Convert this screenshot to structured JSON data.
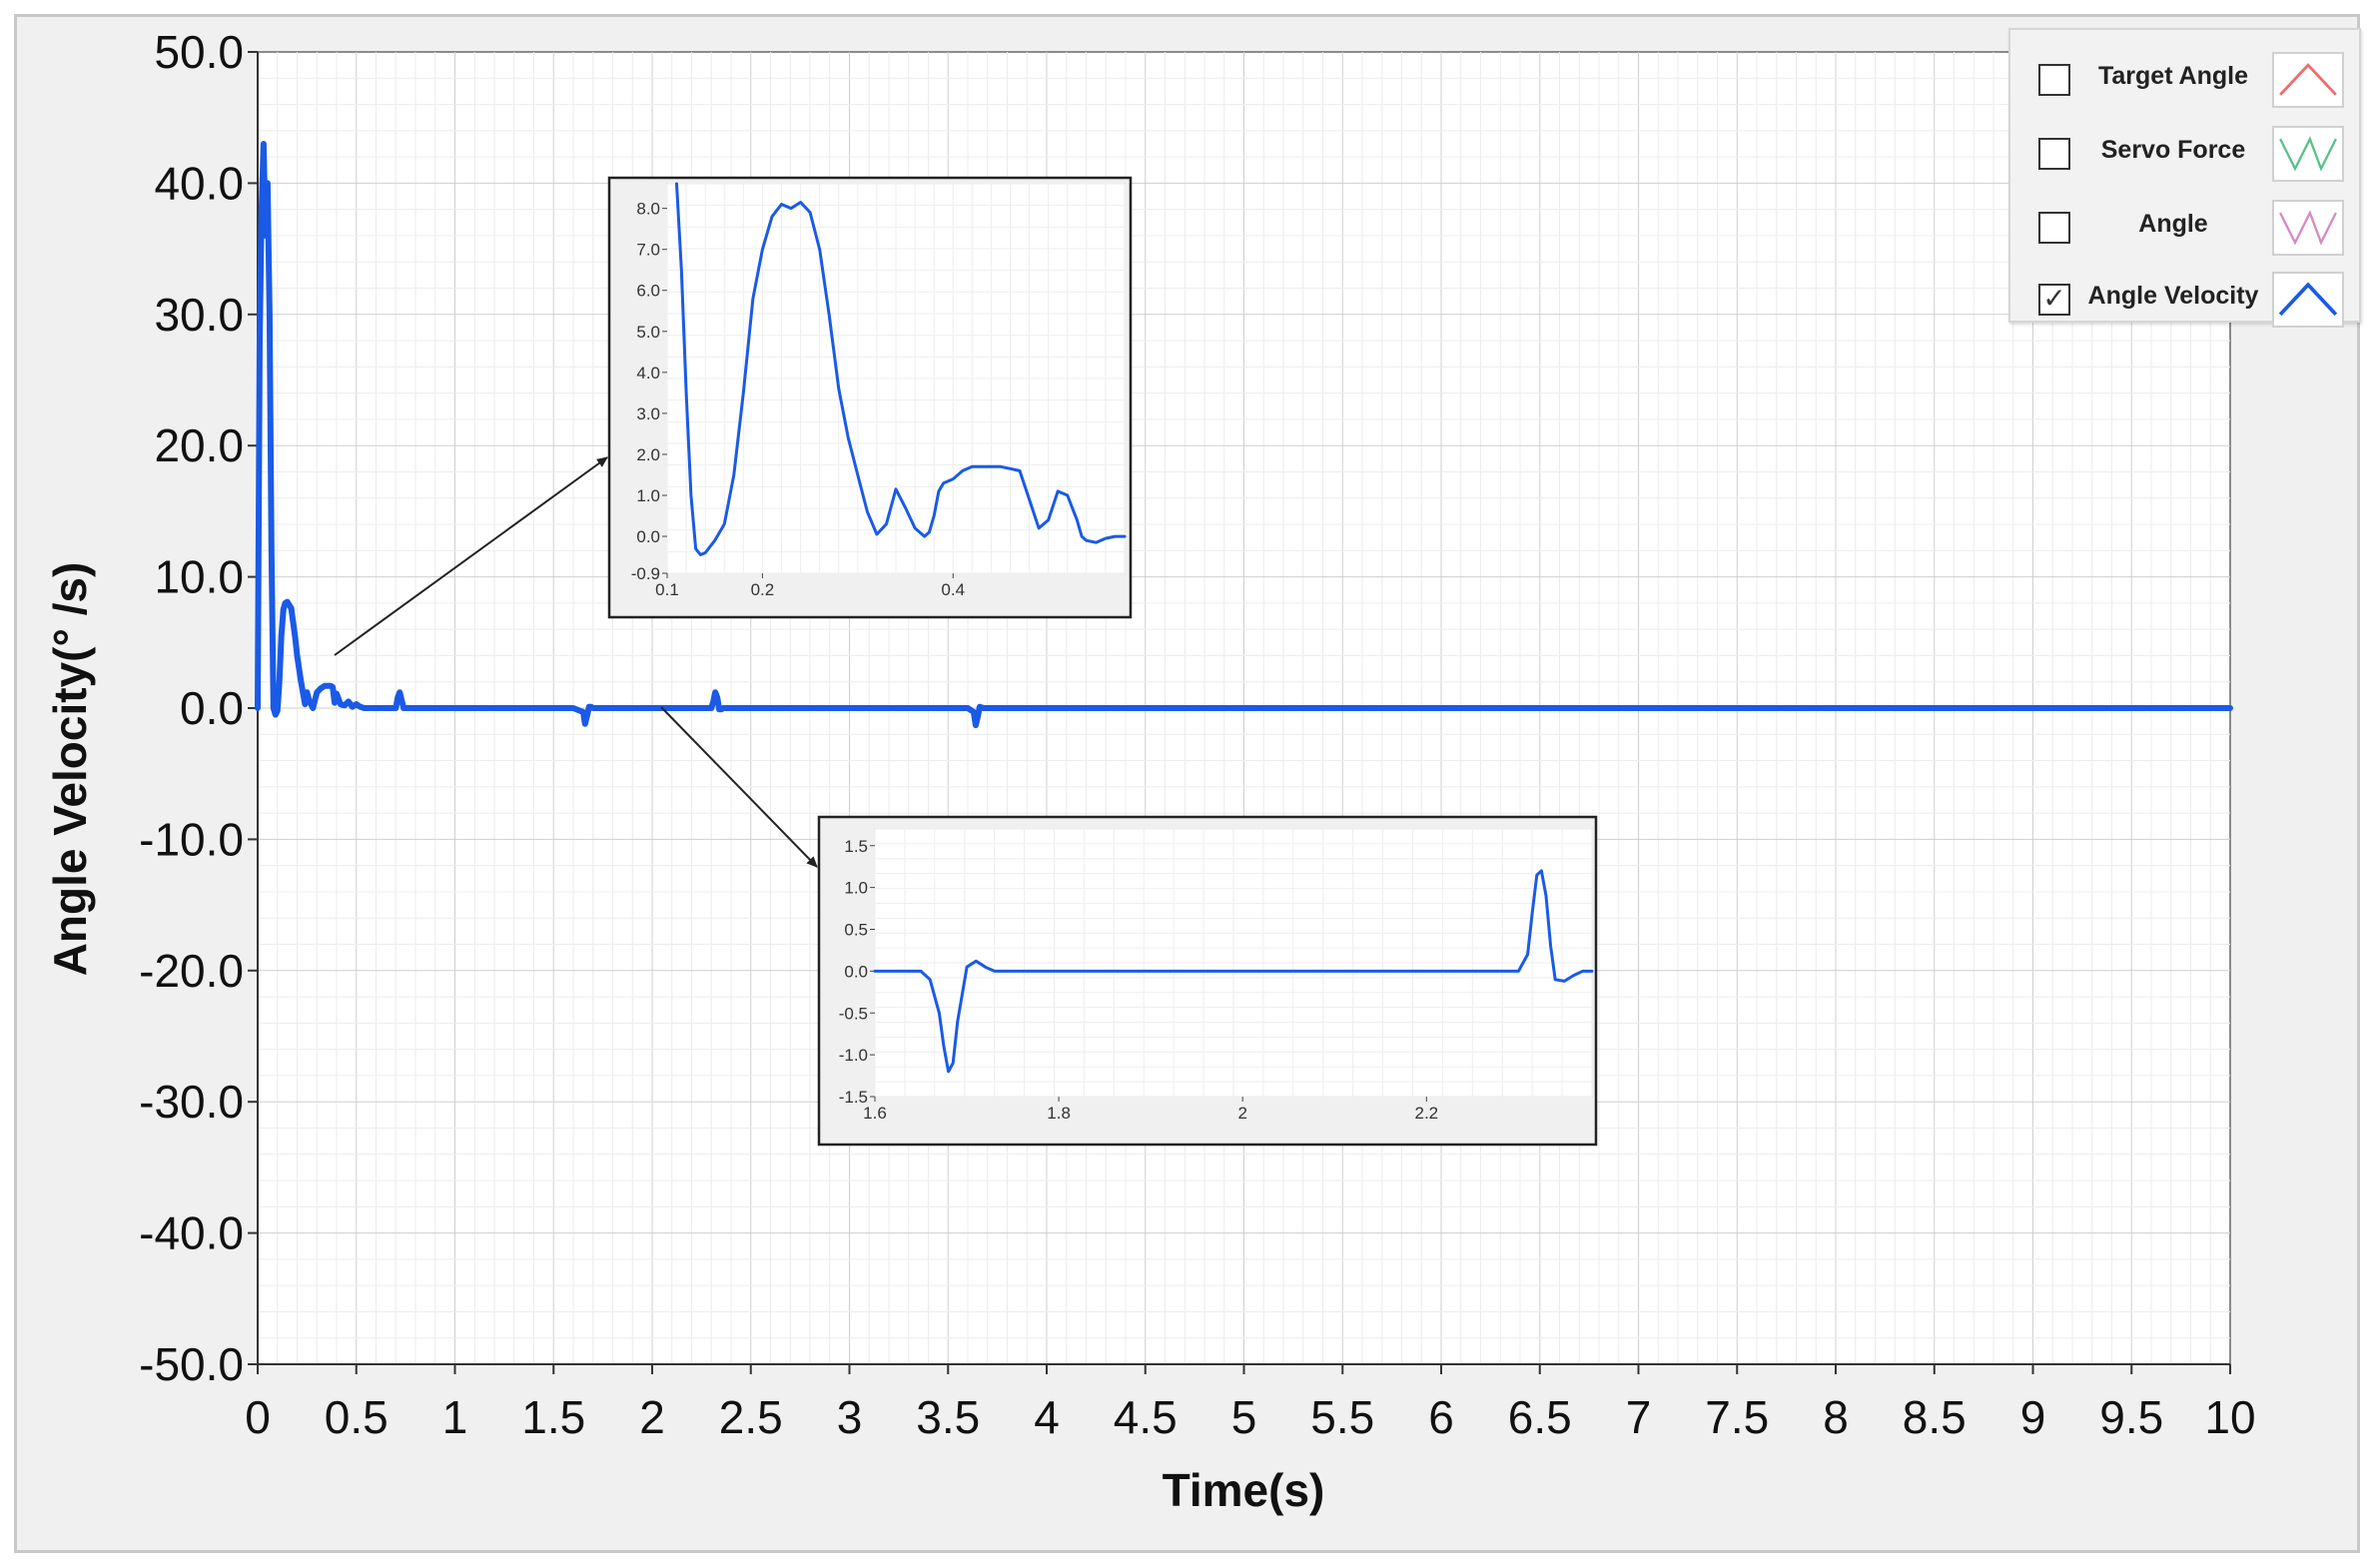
{
  "chart_data": {
    "type": "line",
    "xlabel": "Time(s)",
    "ylabel": "Angle Velocity(°  /s)",
    "xlim": [
      0,
      10
    ],
    "ylim": [
      -50,
      50
    ],
    "x_ticks": [
      "0",
      "0.5",
      "1",
      "1.5",
      "2",
      "2.5",
      "3",
      "3.5",
      "4",
      "4.5",
      "5",
      "5.5",
      "6",
      "6.5",
      "7",
      "7.5",
      "8",
      "8.5",
      "9",
      "9.5",
      "10"
    ],
    "y_ticks": [
      "50.0",
      "40.0",
      "30.0",
      "20.0",
      "10.0",
      "0.0",
      "-10.0",
      "-20.0",
      "-30.0",
      "-40.0",
      "-50.0"
    ],
    "grid": true,
    "legend_position": "top-right",
    "series": [
      {
        "name": "Angle Velocity",
        "color": "#1a5ae6",
        "x": [
          0,
          0.01,
          0.02,
          0.03,
          0.04,
          0.05,
          0.06,
          0.07,
          0.08,
          0.09,
          0.1,
          0.11,
          0.12,
          0.13,
          0.14,
          0.15,
          0.17,
          0.19,
          0.2,
          0.22,
          0.24,
          0.25,
          0.26,
          0.28,
          0.3,
          0.32,
          0.34,
          0.35,
          0.37,
          0.38,
          0.39,
          0.4,
          0.42,
          0.44,
          0.46,
          0.48,
          0.5,
          0.52,
          0.54,
          0.56,
          0.58,
          0.6,
          0.65,
          0.7,
          0.71,
          0.72,
          0.73,
          0.74,
          0.8,
          1.0,
          1.6,
          1.65,
          1.66,
          1.67,
          1.68,
          1.69,
          1.7,
          1.71,
          1.72,
          1.73,
          1.75,
          2.0,
          2.3,
          2.31,
          2.32,
          2.33,
          2.34,
          2.35,
          2.36,
          2.38,
          3.6,
          3.63,
          3.64,
          3.65,
          3.66,
          3.68,
          4.0,
          10.0
        ],
        "y": [
          0,
          28,
          38,
          43,
          36,
          40,
          30,
          12,
          0,
          -0.5,
          -0.2,
          2.0,
          5.5,
          7.5,
          8.0,
          8.1,
          7.6,
          5.4,
          4.0,
          2.0,
          0.3,
          1.2,
          0.6,
          0,
          1.2,
          1.5,
          1.7,
          1.7,
          1.7,
          1.6,
          0.4,
          1.1,
          0.3,
          0.2,
          0.5,
          0.1,
          0.3,
          0.1,
          0,
          0,
          0,
          0,
          0,
          0,
          0.8,
          1.2,
          0.6,
          0,
          0,
          0,
          0,
          -0.3,
          -1.2,
          -0.6,
          0.1,
          0.1,
          0,
          0,
          0,
          0,
          0,
          0,
          0,
          0.5,
          1.2,
          0.8,
          -0.1,
          -0.1,
          0,
          0,
          0,
          -0.3,
          -1.3,
          -0.7,
          0.1,
          0,
          0,
          0
        ]
      }
    ],
    "insets": [
      {
        "xlim": [
          0.1,
          0.58
        ],
        "ylim": [
          -0.9,
          8.6
        ],
        "x_ticks": [
          {
            "value": 0.1,
            "label": "0.1"
          },
          {
            "value": 0.2,
            "label": "0.2"
          },
          {
            "value": 0.4,
            "label": "0.4"
          }
        ],
        "y_ticks": [
          {
            "value": 8.0,
            "label": "8.0"
          },
          {
            "value": 7.0,
            "label": "7.0"
          },
          {
            "value": 6.0,
            "label": "6.0"
          },
          {
            "value": 5.0,
            "label": "5.0"
          },
          {
            "value": 4.0,
            "label": "4.0"
          },
          {
            "value": 3.0,
            "label": "3.0"
          },
          {
            "value": 2.0,
            "label": "2.0"
          },
          {
            "value": 1.0,
            "label": "1.0"
          },
          {
            "value": 0.0,
            "label": "0.0"
          },
          {
            "value": -0.9,
            "label": "-0.9"
          }
        ],
        "x": [
          0.11,
          0.115,
          0.12,
          0.125,
          0.13,
          0.135,
          0.14,
          0.15,
          0.16,
          0.17,
          0.18,
          0.19,
          0.2,
          0.21,
          0.22,
          0.23,
          0.24,
          0.25,
          0.26,
          0.27,
          0.28,
          0.29,
          0.3,
          0.31,
          0.32,
          0.33,
          0.34,
          0.35,
          0.36,
          0.37,
          0.375,
          0.38,
          0.385,
          0.39,
          0.4,
          0.41,
          0.415,
          0.42,
          0.43,
          0.44,
          0.45,
          0.46,
          0.47,
          0.48,
          0.49,
          0.5,
          0.51,
          0.52,
          0.53,
          0.535,
          0.54,
          0.55,
          0.56,
          0.57,
          0.58
        ],
        "y": [
          8.6,
          6.5,
          3.5,
          1.0,
          -0.3,
          -0.45,
          -0.4,
          -0.1,
          0.3,
          1.5,
          3.5,
          5.8,
          7.0,
          7.8,
          8.1,
          8.0,
          8.15,
          7.9,
          7.0,
          5.4,
          3.6,
          2.4,
          1.5,
          0.6,
          0.05,
          0.3,
          1.15,
          0.7,
          0.2,
          0.0,
          0.1,
          0.5,
          1.1,
          1.3,
          1.4,
          1.6,
          1.65,
          1.7,
          1.7,
          1.7,
          1.7,
          1.65,
          1.6,
          0.9,
          0.2,
          0.4,
          1.1,
          1.0,
          0.4,
          0.0,
          -0.1,
          -0.15,
          -0.05,
          0.0,
          0.0
        ]
      },
      {
        "xlim": [
          1.6,
          2.38
        ],
        "ylim": [
          -1.5,
          1.7
        ],
        "x_ticks": [
          {
            "value": 1.6,
            "label": "1.6"
          },
          {
            "value": 1.8,
            "label": "1.8"
          },
          {
            "value": 2.0,
            "label": "2"
          },
          {
            "value": 2.2,
            "label": "2.2"
          }
        ],
        "y_ticks": [
          {
            "value": 1.5,
            "label": "1.5"
          },
          {
            "value": 1.0,
            "label": "1.0"
          },
          {
            "value": 0.5,
            "label": "0.5"
          },
          {
            "value": 0.0,
            "label": "0.0"
          },
          {
            "value": -0.5,
            "label": "-0.5"
          },
          {
            "value": -1.0,
            "label": "-1.0"
          },
          {
            "value": -1.5,
            "label": "-1.5"
          }
        ],
        "x": [
          1.6,
          1.65,
          1.66,
          1.67,
          1.675,
          1.68,
          1.685,
          1.69,
          1.7,
          1.71,
          1.72,
          1.73,
          1.74,
          2.0,
          2.3,
          2.31,
          2.315,
          2.32,
          2.325,
          2.33,
          2.335,
          2.34,
          2.35,
          2.36,
          2.37,
          2.38
        ],
        "y": [
          0,
          0,
          -0.1,
          -0.5,
          -0.9,
          -1.2,
          -1.1,
          -0.6,
          0.05,
          0.12,
          0.05,
          0,
          0,
          0,
          0,
          0.2,
          0.7,
          1.15,
          1.2,
          0.9,
          0.3,
          -0.1,
          -0.12,
          -0.05,
          0,
          0
        ]
      }
    ]
  },
  "legend": {
    "items": [
      {
        "label": "Target Angle",
        "checked": false,
        "color": "#f06b6b"
      },
      {
        "label": "Servo Force",
        "checked": false,
        "color": "#5bbf8a"
      },
      {
        "label": "Angle",
        "checked": false,
        "color": "#d68ac2"
      },
      {
        "label": "Angle Velocity",
        "checked": true,
        "color": "#1a5ae6"
      }
    ]
  }
}
